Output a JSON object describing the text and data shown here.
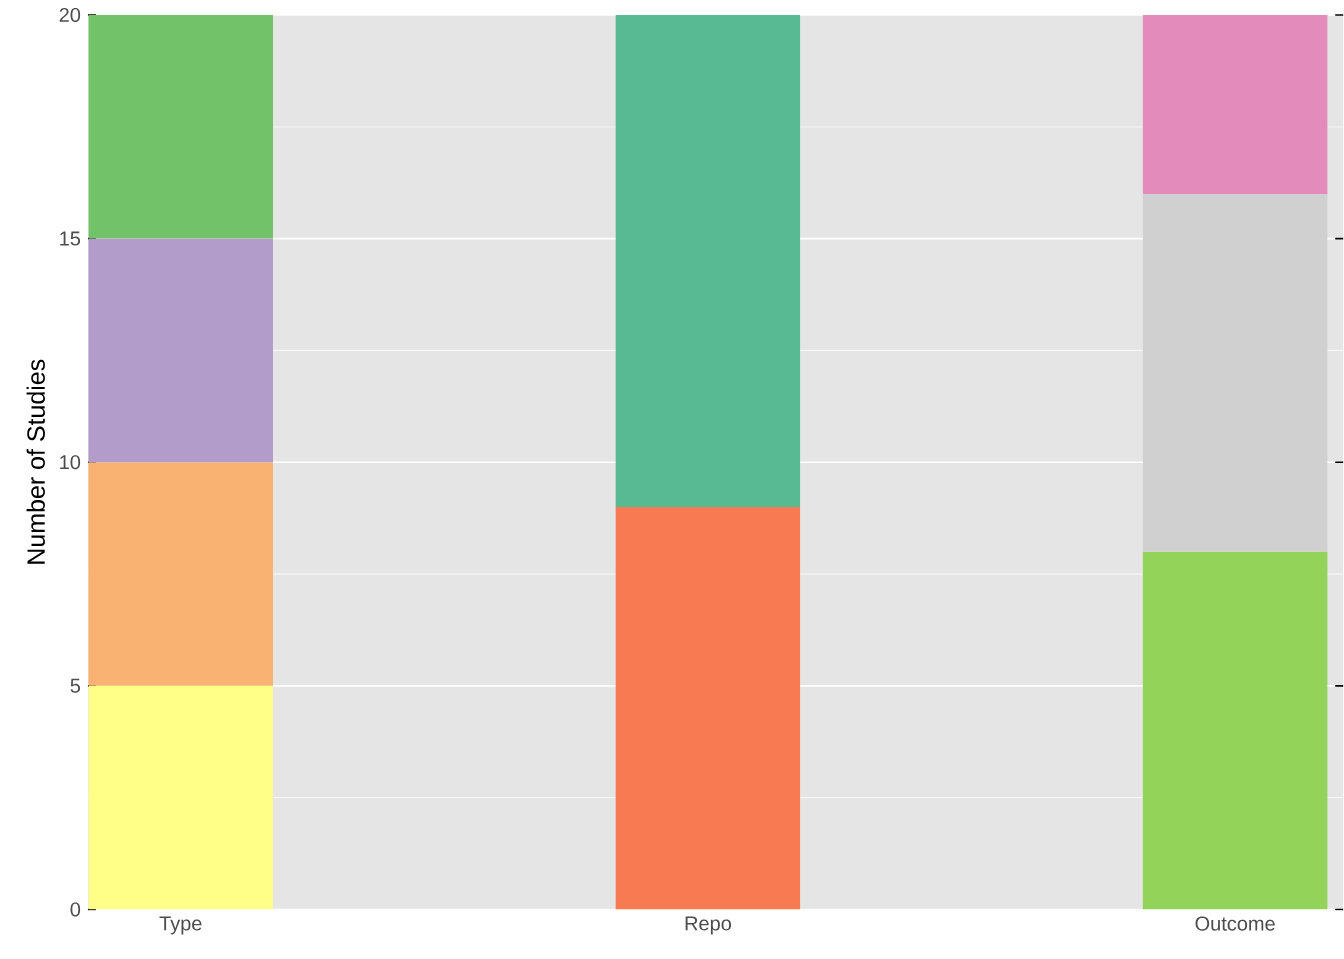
{
  "chart_data": {
    "type": "bar",
    "stacked": true,
    "ylabel": "Number of Studies",
    "categories": [
      "Type",
      "Repo",
      "Outcome"
    ],
    "ylim": [
      0,
      20
    ],
    "yticks": [
      0,
      5,
      10,
      15,
      20
    ],
    "grid": "y",
    "series": [
      {
        "color": "#ffff88",
        "values": [
          5,
          null,
          null
        ]
      },
      {
        "color": "#fab273",
        "values": [
          5,
          null,
          null
        ]
      },
      {
        "color": "#b19cca",
        "values": [
          5,
          null,
          null
        ]
      },
      {
        "color": "#72c26a",
        "values": [
          5,
          null,
          null
        ]
      },
      {
        "color": "#f87a52",
        "values": [
          null,
          9,
          null
        ]
      },
      {
        "color": "#57ba92",
        "values": [
          null,
          11,
          null
        ]
      },
      {
        "color": "#93d35a",
        "values": [
          null,
          null,
          8
        ]
      },
      {
        "color": "#d0d0d0",
        "values": [
          null,
          null,
          8
        ]
      },
      {
        "color": "#e38cbb",
        "values": [
          null,
          null,
          4
        ]
      }
    ]
  }
}
